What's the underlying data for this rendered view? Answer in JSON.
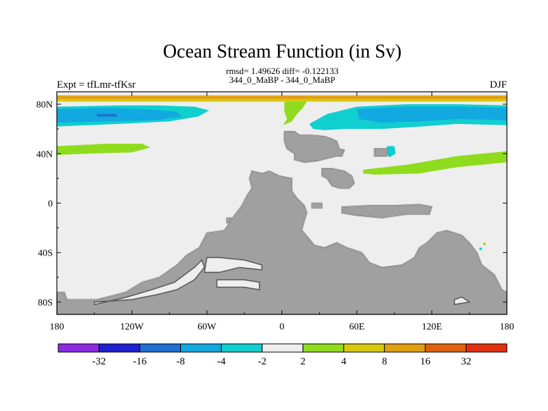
{
  "chart_data": {
    "type": "heatmap",
    "title": "Ocean Stream Function (in Sv)",
    "subtitle_line1": "rmsd= 1.49626 diff= -0.122133",
    "subtitle_line2": "344_0_MaBP - 344_0_MaBP",
    "left_label": "Expt = tfLmr-tfKsr",
    "right_label": "DJF",
    "x_range": [
      -180,
      180
    ],
    "y_range": [
      -90,
      90
    ],
    "x_ticks": [
      {
        "value": -180,
        "label": "180"
      },
      {
        "value": -120,
        "label": "120W"
      },
      {
        "value": -60,
        "label": "60W"
      },
      {
        "value": 0,
        "label": "0"
      },
      {
        "value": 60,
        "label": "60E"
      },
      {
        "value": 120,
        "label": "120E"
      },
      {
        "value": 180,
        "label": "180"
      }
    ],
    "y_ticks": [
      {
        "value": 80,
        "label": "80N"
      },
      {
        "value": 40,
        "label": "40N"
      },
      {
        "value": 0,
        "label": "0"
      },
      {
        "value": -40,
        "label": "40S"
      },
      {
        "value": -80,
        "label": "80S"
      }
    ],
    "colorbar": {
      "colors": [
        "#8a2be2",
        "#2020d0",
        "#1e6fd0",
        "#12a8e0",
        "#10cfcf",
        "#eeeeee",
        "#8fdc1e",
        "#d8c910",
        "#e0a010",
        "#e06010",
        "#e03010"
      ],
      "labels": [
        "-32",
        "-16",
        "-8",
        "-4",
        "-2",
        "2",
        "4",
        "8",
        "16",
        "32"
      ]
    },
    "land_color": "#a0a0a0",
    "ocean_color": "#eeeeee",
    "contours": [
      {
        "name": "band-north-edge-orange",
        "level": "8-16",
        "color": "#e0a010",
        "points": [
          [
            -180,
            87
          ],
          [
            180,
            87
          ],
          [
            180,
            84
          ],
          [
            -180,
            84
          ]
        ]
      },
      {
        "name": "band-north-edge-yellow",
        "level": "4-8",
        "color": "#d8c910",
        "points": [
          [
            -180,
            84
          ],
          [
            180,
            84
          ],
          [
            180,
            82
          ],
          [
            -180,
            82
          ]
        ]
      },
      {
        "name": "cyan-north-pacific",
        "level": "-4 to -2",
        "color": "#10cfcf",
        "points": [
          [
            -180,
            78
          ],
          [
            -130,
            79
          ],
          [
            -100,
            79
          ],
          [
            -70,
            78
          ],
          [
            -58,
            75
          ],
          [
            -67,
            70
          ],
          [
            -90,
            66
          ],
          [
            -130,
            64
          ],
          [
            -180,
            62
          ]
        ]
      },
      {
        "name": "blue-north-pacific",
        "level": "-8 to -4",
        "color": "#12a8e0",
        "points": [
          [
            -180,
            76
          ],
          [
            -140,
            77
          ],
          [
            -110,
            76
          ],
          [
            -85,
            74
          ],
          [
            -80,
            70
          ],
          [
            -100,
            67
          ],
          [
            -140,
            66
          ],
          [
            -180,
            65
          ]
        ]
      },
      {
        "name": "deep-blue-north-pacific",
        "level": "-16 to -8",
        "color": "#1e6fd0",
        "points": [
          [
            -148,
            72
          ],
          [
            -132,
            72
          ],
          [
            -132,
            70
          ],
          [
            -148,
            70
          ]
        ]
      },
      {
        "name": "green-north-pacific",
        "level": "2-4",
        "color": "#8fdc1e",
        "points": [
          [
            -180,
            46
          ],
          [
            -140,
            48
          ],
          [
            -112,
            48
          ],
          [
            -105,
            45
          ],
          [
            -120,
            41
          ],
          [
            -155,
            40
          ],
          [
            -180,
            39
          ]
        ]
      },
      {
        "name": "green-strait",
        "level": "2-4",
        "color": "#8fdc1e",
        "points": [
          [
            2,
            82
          ],
          [
            20,
            82
          ],
          [
            16,
            76
          ],
          [
            12,
            72
          ],
          [
            8,
            66
          ],
          [
            1,
            63
          ],
          [
            4,
            68
          ],
          [
            2,
            74
          ]
        ]
      },
      {
        "name": "cyan-north-atlantic",
        "level": "-4 to -2",
        "color": "#10cfcf",
        "points": [
          [
            22,
            64
          ],
          [
            36,
            72
          ],
          [
            60,
            78
          ],
          [
            100,
            80
          ],
          [
            140,
            80
          ],
          [
            180,
            79
          ],
          [
            180,
            63
          ],
          [
            140,
            64
          ],
          [
            112,
            62
          ],
          [
            80,
            60
          ],
          [
            50,
            60
          ],
          [
            34,
            59
          ],
          [
            25,
            60
          ]
        ]
      },
      {
        "name": "blue-north-atlantic",
        "level": "-8 to -4",
        "color": "#12a8e0",
        "points": [
          [
            60,
            76
          ],
          [
            100,
            78
          ],
          [
            140,
            78
          ],
          [
            180,
            77
          ],
          [
            180,
            67
          ],
          [
            140,
            68
          ],
          [
            110,
            66
          ],
          [
            80,
            65
          ],
          [
            62,
            68
          ]
        ]
      },
      {
        "name": "green-north-atlantic",
        "level": "2-4",
        "color": "#8fdc1e",
        "points": [
          [
            65,
            27
          ],
          [
            100,
            31
          ],
          [
            140,
            38
          ],
          [
            180,
            42
          ],
          [
            180,
            33
          ],
          [
            140,
            29
          ],
          [
            110,
            24
          ],
          [
            75,
            23
          ],
          [
            65,
            24
          ]
        ]
      },
      {
        "name": "cyan-patch-atlantic",
        "level": "-4 to -2",
        "color": "#10cfcf",
        "points": [
          [
            84,
            46
          ],
          [
            90,
            46
          ],
          [
            91,
            40
          ],
          [
            86,
            37
          ],
          [
            83,
            41
          ]
        ]
      },
      {
        "name": "cyan-dot-south",
        "level": "-4 to -2",
        "color": "#10cfcf",
        "points": [
          [
            158,
            -36
          ],
          [
            160,
            -36
          ],
          [
            160,
            -38
          ],
          [
            158,
            -38
          ]
        ]
      },
      {
        "name": "green-dot-south",
        "level": "2-4",
        "color": "#8fdc1e",
        "points": [
          [
            161,
            -32
          ],
          [
            163,
            -32
          ],
          [
            163,
            -34
          ],
          [
            161,
            -34
          ]
        ]
      }
    ],
    "land": [
      {
        "name": "land-northern-block",
        "points": [
          [
            2,
            58
          ],
          [
            10,
            58
          ],
          [
            14,
            55
          ],
          [
            24,
            55
          ],
          [
            34,
            54
          ],
          [
            40,
            52
          ],
          [
            44,
            50
          ],
          [
            46,
            44
          ],
          [
            50,
            43
          ],
          [
            48,
            38
          ],
          [
            44,
            38
          ],
          [
            36,
            36
          ],
          [
            28,
            34
          ],
          [
            18,
            33
          ],
          [
            10,
            35
          ],
          [
            10,
            40
          ],
          [
            4,
            44
          ],
          [
            2,
            50
          ]
        ]
      },
      {
        "name": "land-middle-strip",
        "points": [
          [
            32,
            28
          ],
          [
            40,
            28
          ],
          [
            50,
            26
          ],
          [
            56,
            22
          ],
          [
            58,
            16
          ],
          [
            54,
            12
          ],
          [
            46,
            12
          ],
          [
            40,
            14
          ],
          [
            36,
            20
          ],
          [
            32,
            22
          ]
        ]
      },
      {
        "name": "land-islet-north",
        "points": [
          [
            74,
            44
          ],
          [
            84,
            44
          ],
          [
            84,
            38
          ],
          [
            74,
            38
          ]
        ]
      },
      {
        "name": "land-equatorial-strip",
        "points": [
          [
            48,
            -3
          ],
          [
            70,
            -2
          ],
          [
            90,
            -2
          ],
          [
            110,
            -1
          ],
          [
            120,
            -3
          ],
          [
            118,
            -9
          ],
          [
            100,
            -9
          ],
          [
            80,
            -12
          ],
          [
            60,
            -10
          ],
          [
            48,
            -8
          ]
        ]
      },
      {
        "name": "land-islet-equator",
        "points": [
          [
            24,
            0
          ],
          [
            32,
            0
          ],
          [
            32,
            -4
          ],
          [
            24,
            -4
          ]
        ]
      },
      {
        "name": "land-tiny-isle-west",
        "points": [
          [
            -44,
            -12
          ],
          [
            -40,
            -12
          ],
          [
            -40,
            -16
          ],
          [
            -44,
            -16
          ]
        ]
      },
      {
        "name": "land-main-continent",
        "points": [
          [
            -180,
            -72
          ],
          [
            -174,
            -72
          ],
          [
            -172,
            -78
          ],
          [
            -148,
            -78
          ],
          [
            -140,
            -76
          ],
          [
            -125,
            -72
          ],
          [
            -112,
            -64
          ],
          [
            -98,
            -60
          ],
          [
            -84,
            -50
          ],
          [
            -76,
            -42
          ],
          [
            -66,
            -36
          ],
          [
            -60,
            -24
          ],
          [
            -46,
            -22
          ],
          [
            -38,
            -10
          ],
          [
            -32,
            -2
          ],
          [
            -28,
            6
          ],
          [
            -24,
            12
          ],
          [
            -26,
            20
          ],
          [
            -24,
            26
          ],
          [
            -16,
            24
          ],
          [
            -10,
            26
          ],
          [
            -2,
            22
          ],
          [
            8,
            20
          ],
          [
            8,
            10
          ],
          [
            12,
            4
          ],
          [
            18,
            -2
          ],
          [
            20,
            -8
          ],
          [
            18,
            -14
          ],
          [
            16,
            -22
          ],
          [
            26,
            -34
          ],
          [
            34,
            -36
          ],
          [
            44,
            -32
          ],
          [
            52,
            -36
          ],
          [
            64,
            -40
          ],
          [
            70,
            -48
          ],
          [
            80,
            -52
          ],
          [
            96,
            -50
          ],
          [
            106,
            -44
          ],
          [
            110,
            -36
          ],
          [
            116,
            -32
          ],
          [
            124,
            -24
          ],
          [
            132,
            -22
          ],
          [
            144,
            -26
          ],
          [
            150,
            -32
          ],
          [
            156,
            -40
          ],
          [
            160,
            -50
          ],
          [
            170,
            -58
          ],
          [
            176,
            -70
          ],
          [
            180,
            -72
          ],
          [
            180,
            -90
          ],
          [
            -180,
            -90
          ]
        ]
      }
    ],
    "holes": [
      {
        "name": "ocean-inlet-upper",
        "points": [
          [
            -60,
            -44
          ],
          [
            -50,
            -44
          ],
          [
            -30,
            -46
          ],
          [
            -16,
            -50
          ],
          [
            -16,
            -54
          ],
          [
            -34,
            -52
          ],
          [
            -50,
            -56
          ],
          [
            -62,
            -56
          ]
        ]
      },
      {
        "name": "ocean-inlet-middle",
        "points": [
          [
            -52,
            -62
          ],
          [
            -30,
            -62
          ],
          [
            -18,
            -64
          ],
          [
            -18,
            -70
          ],
          [
            -30,
            -68
          ],
          [
            -52,
            -68
          ]
        ]
      },
      {
        "name": "ocean-inlet-long",
        "points": [
          [
            -150,
            -80
          ],
          [
            -120,
            -78
          ],
          [
            -100,
            -74
          ],
          [
            -84,
            -70
          ],
          [
            -70,
            -62
          ],
          [
            -62,
            -52
          ],
          [
            -64,
            -46
          ],
          [
            -70,
            -52
          ],
          [
            -86,
            -64
          ],
          [
            -104,
            -70
          ],
          [
            -124,
            -76
          ],
          [
            -150,
            -82
          ]
        ]
      },
      {
        "name": "ocean-inlet-east",
        "points": [
          [
            138,
            -78
          ],
          [
            144,
            -76
          ],
          [
            150,
            -80
          ],
          [
            138,
            -82
          ]
        ]
      }
    ]
  }
}
